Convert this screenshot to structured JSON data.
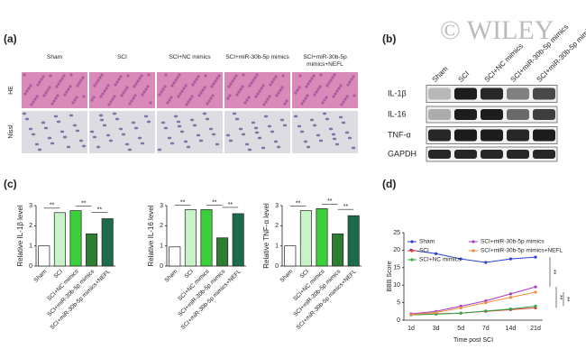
{
  "panel_labels": [
    "(a)",
    "(b)",
    "(c)",
    "(d)"
  ],
  "watermark": "© WILEY",
  "histology": {
    "columns": [
      "Sham",
      "SCI",
      "SCI+NC mimics",
      "SCI+miR-30b-5p mimics",
      "SCI+miR-30b-5p mimics+NEFL"
    ],
    "rows": [
      "HE",
      "Nissl"
    ]
  },
  "blot": {
    "lanes": [
      "Sham",
      "SCI",
      "SCI+NC mimics",
      "SCI+miR-30b-5p mimics",
      "SCI+miR-30b-5p mimics+NEFL"
    ],
    "rows": [
      "IL-1β",
      "IL-16",
      "TNF-α",
      "GAPDH"
    ]
  },
  "chart_data": [
    {
      "type": "bar",
      "y_label": "Relative IL-1β level",
      "categories": [
        "Sham",
        "SCI",
        "SCI+NC mimics",
        "SCI+miR-30b-5p mimics",
        "SCI+miR-30b-5p mimics+NEFL"
      ],
      "values": [
        1.0,
        2.65,
        2.75,
        1.6,
        2.35
      ],
      "colors": [
        "#ffffff",
        "#c8f2c8",
        "#3ccf3c",
        "#2e7d32",
        "#1c6b4a"
      ],
      "ylim": [
        0,
        3
      ],
      "yticks": [
        0,
        1,
        2,
        3
      ],
      "annotations": [
        "**",
        "**",
        "**"
      ]
    },
    {
      "type": "bar",
      "y_label": "Relative IL-16 level",
      "categories": [
        "Sham",
        "SCI",
        "SCI+NC mimics",
        "SCI+miR-30b-5p mimics",
        "SCI+miR-30b-5p mimics+NEFL"
      ],
      "values": [
        0.95,
        2.8,
        2.8,
        1.4,
        2.6
      ],
      "colors": [
        "#ffffff",
        "#c8f2c8",
        "#3ccf3c",
        "#2e7d32",
        "#1c6b4a"
      ],
      "ylim": [
        0,
        3
      ],
      "yticks": [
        0,
        1,
        2,
        3
      ],
      "annotations": [
        "**",
        "**",
        "**"
      ]
    },
    {
      "type": "bar",
      "y_label": "Relative TNF-α level",
      "categories": [
        "Sham",
        "SCI",
        "SCI+NC mimics",
        "SCI+miR-30b-5p mimics",
        "SCI+miR-30b-5p mimics+NEFL"
      ],
      "values": [
        1.0,
        2.75,
        2.85,
        1.6,
        2.5
      ],
      "colors": [
        "#ffffff",
        "#c8f2c8",
        "#3ccf3c",
        "#2e7d32",
        "#1c6b4a"
      ],
      "ylim": [
        0,
        3
      ],
      "yticks": [
        0,
        1,
        2,
        3
      ],
      "annotations": [
        "**",
        "**",
        "**"
      ]
    },
    {
      "type": "line",
      "x_label": "Time post SCI",
      "y_label": "BBB Score",
      "categories": [
        "1d",
        "3d",
        "5d",
        "7d",
        "14d",
        "21d"
      ],
      "series": [
        {
          "name": "Sham",
          "color": "#2b3fd6",
          "values": [
            20,
            19,
            17.5,
            16.5,
            17.5,
            18
          ]
        },
        {
          "name": "SCI",
          "color": "#e0362c",
          "values": [
            1.5,
            1.8,
            2,
            2.5,
            3,
            3.5
          ]
        },
        {
          "name": "SCI+NC mimics",
          "color": "#2ea84a",
          "values": [
            1.5,
            1.7,
            2,
            2.6,
            3.2,
            4
          ]
        },
        {
          "name": "SCI+miR-30b-5p mimics",
          "color": "#a43cc8",
          "values": [
            1.8,
            2.5,
            4,
            5.5,
            7.5,
            9.5
          ]
        },
        {
          "name": "SCI+miR-30b-5p mimics+NEFL",
          "color": "#f08a3c",
          "values": [
            1.6,
            2.2,
            3.5,
            5,
            6.5,
            8
          ]
        }
      ],
      "ylim": [
        0,
        25
      ],
      "yticks": [
        0,
        5,
        10,
        15,
        20,
        25
      ],
      "annotations": [
        "**",
        "**",
        "**"
      ]
    }
  ]
}
